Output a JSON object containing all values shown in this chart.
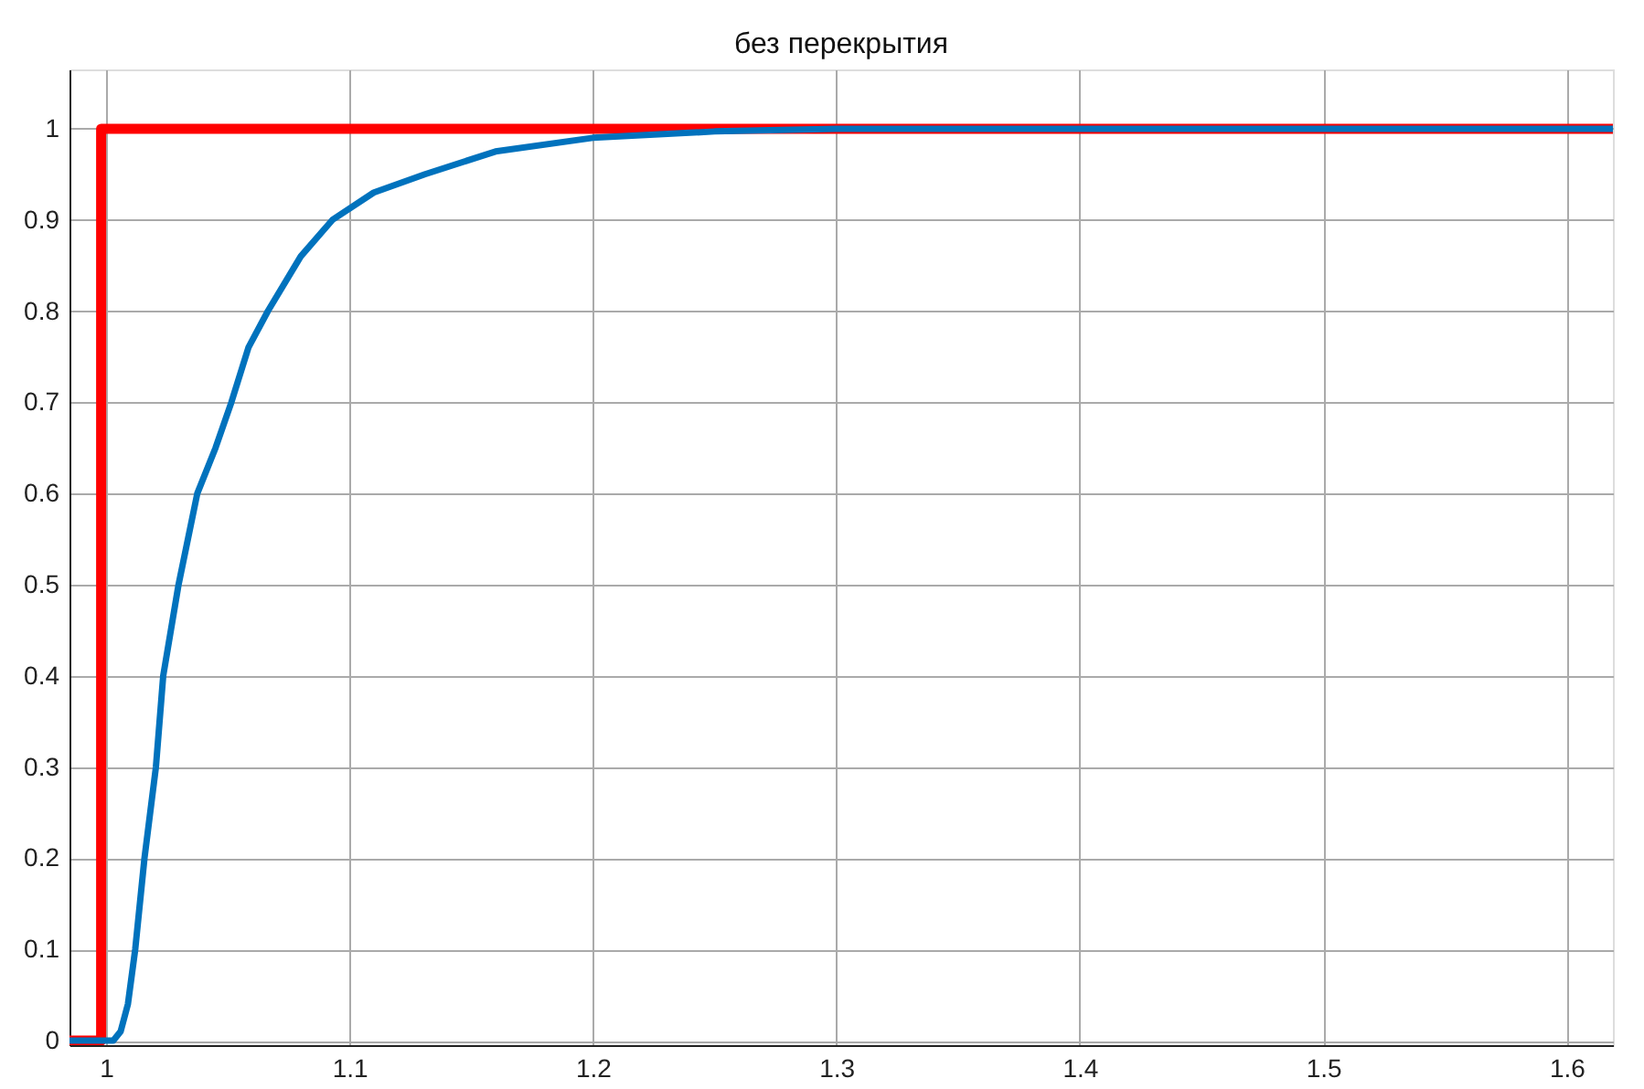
{
  "chart_data": {
    "type": "line",
    "title": "без перекрытия",
    "series": [
      {
        "color": "#ff0000",
        "x": [
          0.985,
          0.998,
          0.998,
          1.619
        ],
        "values": [
          0,
          0,
          1,
          1
        ]
      },
      {
        "color": "#0072bd",
        "x": [
          0.985,
          1.003,
          1.006,
          1.009,
          1.012,
          1.0158,
          1.0205,
          1.0235,
          1.0298,
          1.0375,
          1.045,
          1.0515,
          1.0585,
          1.0665,
          1.08,
          1.093,
          1.11,
          1.131,
          1.16,
          1.2,
          1.25,
          1.3,
          1.4,
          1.619
        ],
        "values": [
          0,
          0,
          0.01,
          0.04,
          0.1,
          0.2,
          0.3,
          0.4,
          0.5,
          0.6,
          0.65,
          0.7,
          0.76,
          0.8,
          0.86,
          0.9,
          0.93,
          0.95,
          0.975,
          0.99,
          0.997,
          1,
          1,
          1
        ]
      }
    ],
    "xlim": [
      0.985,
      1.619
    ],
    "xticks": [
      1,
      1.1,
      1.2,
      1.3,
      1.4,
      1.5,
      1.6
    ],
    "ylim": [
      -0.005,
      1.065
    ],
    "yticks": [
      0,
      0.1,
      0.2,
      0.3,
      0.4,
      0.5,
      0.6,
      0.7,
      0.8,
      0.9,
      1
    ],
    "grid": true,
    "marker": "none",
    "line_style": "solid"
  }
}
